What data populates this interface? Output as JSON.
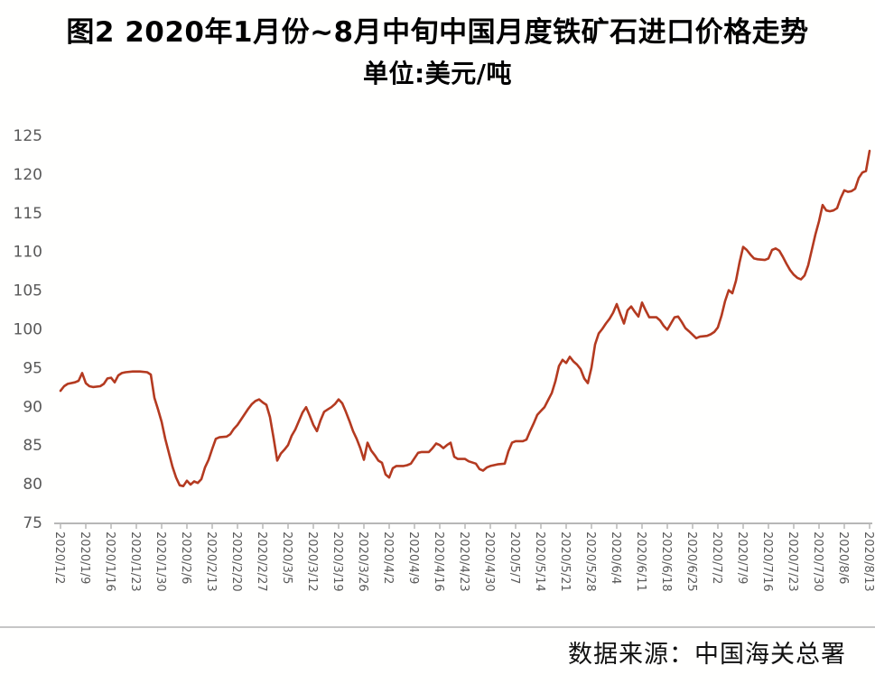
{
  "title": {
    "line1": "图2  2020年1月份~8月中旬中国月度铁矿石进口价格走势",
    "line2": "单位:美元/吨"
  },
  "source": "数据来源：中国海关总署",
  "chart_data": {
    "type": "line",
    "title": "2020年1月份~8月中旬中国月度铁矿石进口价格走势",
    "unit_label": "单位:美元/吨",
    "xlabel": "",
    "ylabel": "",
    "ylim": [
      75,
      125
    ],
    "y_tick_step": 5,
    "y_ticks": [
      75,
      80,
      85,
      90,
      95,
      100,
      105,
      110,
      115,
      120,
      125
    ],
    "grid": false,
    "legend": "none",
    "line_color": "#b43a20",
    "axis_color": "#b7b7b7",
    "tick_label_color": "#595959",
    "x_tick_labels": [
      "2020/1/2",
      "2020/1/9",
      "2020/1/16",
      "2020/1/23",
      "2020/1/30",
      "2020/2/6",
      "2020/2/13",
      "2020/2/20",
      "2020/2/27",
      "2020/3/5",
      "2020/3/12",
      "2020/3/19",
      "2020/3/26",
      "2020/4/2",
      "2020/4/9",
      "2020/4/16",
      "2020/4/23",
      "2020/4/30",
      "2020/5/7",
      "2020/5/14",
      "2020/5/21",
      "2020/5/28",
      "2020/6/4",
      "2020/6/11",
      "2020/6/18",
      "2020/6/25",
      "2020/7/2",
      "2020/7/9",
      "2020/7/16",
      "2020/7/23",
      "2020/7/30",
      "2020/8/6",
      "2020/8/13"
    ],
    "points": [
      [
        "2020/1/2",
        92.0
      ],
      [
        "2020/1/3",
        92.6
      ],
      [
        "2020/1/4",
        92.9
      ],
      [
        "2020/1/6",
        93.1
      ],
      [
        "2020/1/7",
        93.3
      ],
      [
        "2020/1/8",
        94.3
      ],
      [
        "2020/1/9",
        93.0
      ],
      [
        "2020/1/10",
        92.6
      ],
      [
        "2020/1/11",
        92.5
      ],
      [
        "2020/1/13",
        92.6
      ],
      [
        "2020/1/14",
        92.9
      ],
      [
        "2020/1/15",
        93.6
      ],
      [
        "2020/1/16",
        93.7
      ],
      [
        "2020/1/17",
        93.1
      ],
      [
        "2020/1/18",
        94.0
      ],
      [
        "2020/1/19",
        94.3
      ],
      [
        "2020/1/20",
        94.4
      ],
      [
        "2020/1/22",
        94.5
      ],
      [
        "2020/1/24",
        94.5
      ],
      [
        "2020/1/26",
        94.4
      ],
      [
        "2020/1/27",
        94.1
      ],
      [
        "2020/1/28",
        91.1
      ],
      [
        "2020/1/29",
        89.6
      ],
      [
        "2020/1/30",
        88.0
      ],
      [
        "2020/1/31",
        85.8
      ],
      [
        "2020/2/1",
        84.0
      ],
      [
        "2020/2/2",
        82.2
      ],
      [
        "2020/2/3",
        80.8
      ],
      [
        "2020/2/4",
        79.8
      ],
      [
        "2020/2/5",
        79.7
      ],
      [
        "2020/2/6",
        80.4
      ],
      [
        "2020/2/7",
        79.9
      ],
      [
        "2020/2/8",
        80.3
      ],
      [
        "2020/2/9",
        80.1
      ],
      [
        "2020/2/10",
        80.6
      ],
      [
        "2020/2/11",
        82.1
      ],
      [
        "2020/2/12",
        83.1
      ],
      [
        "2020/2/13",
        84.5
      ],
      [
        "2020/2/14",
        85.8
      ],
      [
        "2020/2/15",
        86.0
      ],
      [
        "2020/2/17",
        86.1
      ],
      [
        "2020/2/18",
        86.4
      ],
      [
        "2020/2/19",
        87.1
      ],
      [
        "2020/2/20",
        87.6
      ],
      [
        "2020/2/21",
        88.3
      ],
      [
        "2020/2/22",
        89.0
      ],
      [
        "2020/2/23",
        89.7
      ],
      [
        "2020/2/24",
        90.3
      ],
      [
        "2020/2/25",
        90.7
      ],
      [
        "2020/2/26",
        90.9
      ],
      [
        "2020/2/27",
        90.5
      ],
      [
        "2020/2/28",
        90.2
      ],
      [
        "2020/2/29",
        88.6
      ],
      [
        "2020/3/1",
        85.9
      ],
      [
        "2020/3/2",
        83.0
      ],
      [
        "2020/3/3",
        83.9
      ],
      [
        "2020/3/4",
        84.4
      ],
      [
        "2020/3/5",
        85.0
      ],
      [
        "2020/3/6",
        86.2
      ],
      [
        "2020/3/7",
        87.0
      ],
      [
        "2020/3/8",
        88.1
      ],
      [
        "2020/3/9",
        89.2
      ],
      [
        "2020/3/10",
        89.9
      ],
      [
        "2020/3/11",
        88.8
      ],
      [
        "2020/3/12",
        87.6
      ],
      [
        "2020/3/13",
        86.8
      ],
      [
        "2020/3/14",
        88.2
      ],
      [
        "2020/3/15",
        89.3
      ],
      [
        "2020/3/16",
        89.6
      ],
      [
        "2020/3/17",
        89.9
      ],
      [
        "2020/3/18",
        90.3
      ],
      [
        "2020/3/19",
        90.9
      ],
      [
        "2020/3/20",
        90.4
      ],
      [
        "2020/3/21",
        89.3
      ],
      [
        "2020/3/22",
        88.1
      ],
      [
        "2020/3/23",
        86.8
      ],
      [
        "2020/3/24",
        85.8
      ],
      [
        "2020/3/25",
        84.6
      ],
      [
        "2020/3/26",
        83.1
      ],
      [
        "2020/3/27",
        85.3
      ],
      [
        "2020/3/28",
        84.3
      ],
      [
        "2020/3/29",
        83.7
      ],
      [
        "2020/3/30",
        83.0
      ],
      [
        "2020/3/31",
        82.7
      ],
      [
        "2020/4/1",
        81.2
      ],
      [
        "2020/4/2",
        80.8
      ],
      [
        "2020/4/3",
        82.0
      ],
      [
        "2020/4/4",
        82.3
      ],
      [
        "2020/4/6",
        82.3
      ],
      [
        "2020/4/7",
        82.4
      ],
      [
        "2020/4/8",
        82.6
      ],
      [
        "2020/4/9",
        83.3
      ],
      [
        "2020/4/10",
        84.0
      ],
      [
        "2020/4/11",
        84.1
      ],
      [
        "2020/4/13",
        84.1
      ],
      [
        "2020/4/14",
        84.6
      ],
      [
        "2020/4/15",
        85.2
      ],
      [
        "2020/4/16",
        85.0
      ],
      [
        "2020/4/17",
        84.6
      ],
      [
        "2020/4/18",
        85.0
      ],
      [
        "2020/4/19",
        85.3
      ],
      [
        "2020/4/20",
        83.5
      ],
      [
        "2020/4/21",
        83.2
      ],
      [
        "2020/4/23",
        83.2
      ],
      [
        "2020/4/24",
        82.9
      ],
      [
        "2020/4/26",
        82.6
      ],
      [
        "2020/4/27",
        81.9
      ],
      [
        "2020/4/28",
        81.7
      ],
      [
        "2020/4/29",
        82.1
      ],
      [
        "2020/4/30",
        82.3
      ],
      [
        "2020/5/2",
        82.5
      ],
      [
        "2020/5/4",
        82.6
      ],
      [
        "2020/5/5",
        84.2
      ],
      [
        "2020/5/6",
        85.3
      ],
      [
        "2020/5/7",
        85.5
      ],
      [
        "2020/5/9",
        85.5
      ],
      [
        "2020/5/10",
        85.7
      ],
      [
        "2020/5/11",
        86.8
      ],
      [
        "2020/5/12",
        87.8
      ],
      [
        "2020/5/13",
        88.9
      ],
      [
        "2020/5/14",
        89.4
      ],
      [
        "2020/5/15",
        89.9
      ],
      [
        "2020/5/16",
        90.8
      ],
      [
        "2020/5/17",
        91.7
      ],
      [
        "2020/5/18",
        93.2
      ],
      [
        "2020/5/19",
        95.2
      ],
      [
        "2020/5/20",
        96.0
      ],
      [
        "2020/5/21",
        95.6
      ],
      [
        "2020/5/22",
        96.4
      ],
      [
        "2020/5/23",
        95.8
      ],
      [
        "2020/5/24",
        95.4
      ],
      [
        "2020/5/25",
        94.8
      ],
      [
        "2020/5/26",
        93.6
      ],
      [
        "2020/5/27",
        93.0
      ],
      [
        "2020/5/28",
        95.0
      ],
      [
        "2020/5/29",
        98.0
      ],
      [
        "2020/5/30",
        99.4
      ],
      [
        "2020/5/31",
        100.0
      ],
      [
        "2020/6/1",
        100.7
      ],
      [
        "2020/6/2",
        101.3
      ],
      [
        "2020/6/3",
        102.1
      ],
      [
        "2020/6/4",
        103.2
      ],
      [
        "2020/6/5",
        101.9
      ],
      [
        "2020/6/6",
        100.7
      ],
      [
        "2020/6/7",
        102.4
      ],
      [
        "2020/6/8",
        102.9
      ],
      [
        "2020/6/9",
        102.2
      ],
      [
        "2020/6/10",
        101.6
      ],
      [
        "2020/6/11",
        103.4
      ],
      [
        "2020/6/12",
        102.4
      ],
      [
        "2020/6/13",
        101.5
      ],
      [
        "2020/6/15",
        101.5
      ],
      [
        "2020/6/16",
        101.1
      ],
      [
        "2020/6/17",
        100.4
      ],
      [
        "2020/6/18",
        99.9
      ],
      [
        "2020/6/19",
        100.7
      ],
      [
        "2020/6/20",
        101.5
      ],
      [
        "2020/6/21",
        101.6
      ],
      [
        "2020/6/22",
        100.9
      ],
      [
        "2020/6/23",
        100.1
      ],
      [
        "2020/6/24",
        99.7
      ],
      [
        "2020/6/26",
        98.8
      ],
      [
        "2020/6/27",
        99.0
      ],
      [
        "2020/6/29",
        99.1
      ],
      [
        "2020/6/30",
        99.3
      ],
      [
        "2020/7/1",
        99.6
      ],
      [
        "2020/7/2",
        100.2
      ],
      [
        "2020/7/3",
        101.7
      ],
      [
        "2020/7/4",
        103.6
      ],
      [
        "2020/7/5",
        105.0
      ],
      [
        "2020/7/6",
        104.6
      ],
      [
        "2020/7/7",
        106.2
      ],
      [
        "2020/7/8",
        108.6
      ],
      [
        "2020/7/9",
        110.6
      ],
      [
        "2020/7/10",
        110.2
      ],
      [
        "2020/7/11",
        109.6
      ],
      [
        "2020/7/12",
        109.1
      ],
      [
        "2020/7/13",
        109.0
      ],
      [
        "2020/7/15",
        108.9
      ],
      [
        "2020/7/16",
        109.1
      ],
      [
        "2020/7/17",
        110.2
      ],
      [
        "2020/7/18",
        110.4
      ],
      [
        "2020/7/19",
        110.1
      ],
      [
        "2020/7/20",
        109.3
      ],
      [
        "2020/7/21",
        108.4
      ],
      [
        "2020/7/22",
        107.6
      ],
      [
        "2020/7/23",
        107.0
      ],
      [
        "2020/7/24",
        106.6
      ],
      [
        "2020/7/25",
        106.4
      ],
      [
        "2020/7/26",
        106.9
      ],
      [
        "2020/7/27",
        108.2
      ],
      [
        "2020/7/28",
        110.2
      ],
      [
        "2020/7/29",
        112.2
      ],
      [
        "2020/7/30",
        113.9
      ],
      [
        "2020/7/31",
        116.0
      ],
      [
        "2020/8/1",
        115.3
      ],
      [
        "2020/8/2",
        115.2
      ],
      [
        "2020/8/3",
        115.3
      ],
      [
        "2020/8/4",
        115.6
      ],
      [
        "2020/8/5",
        116.9
      ],
      [
        "2020/8/6",
        117.9
      ],
      [
        "2020/8/7",
        117.7
      ],
      [
        "2020/8/8",
        117.8
      ],
      [
        "2020/8/9",
        118.1
      ],
      [
        "2020/8/10",
        119.5
      ],
      [
        "2020/8/11",
        120.2
      ],
      [
        "2020/8/12",
        120.4
      ],
      [
        "2020/8/13",
        123.0
      ]
    ]
  }
}
